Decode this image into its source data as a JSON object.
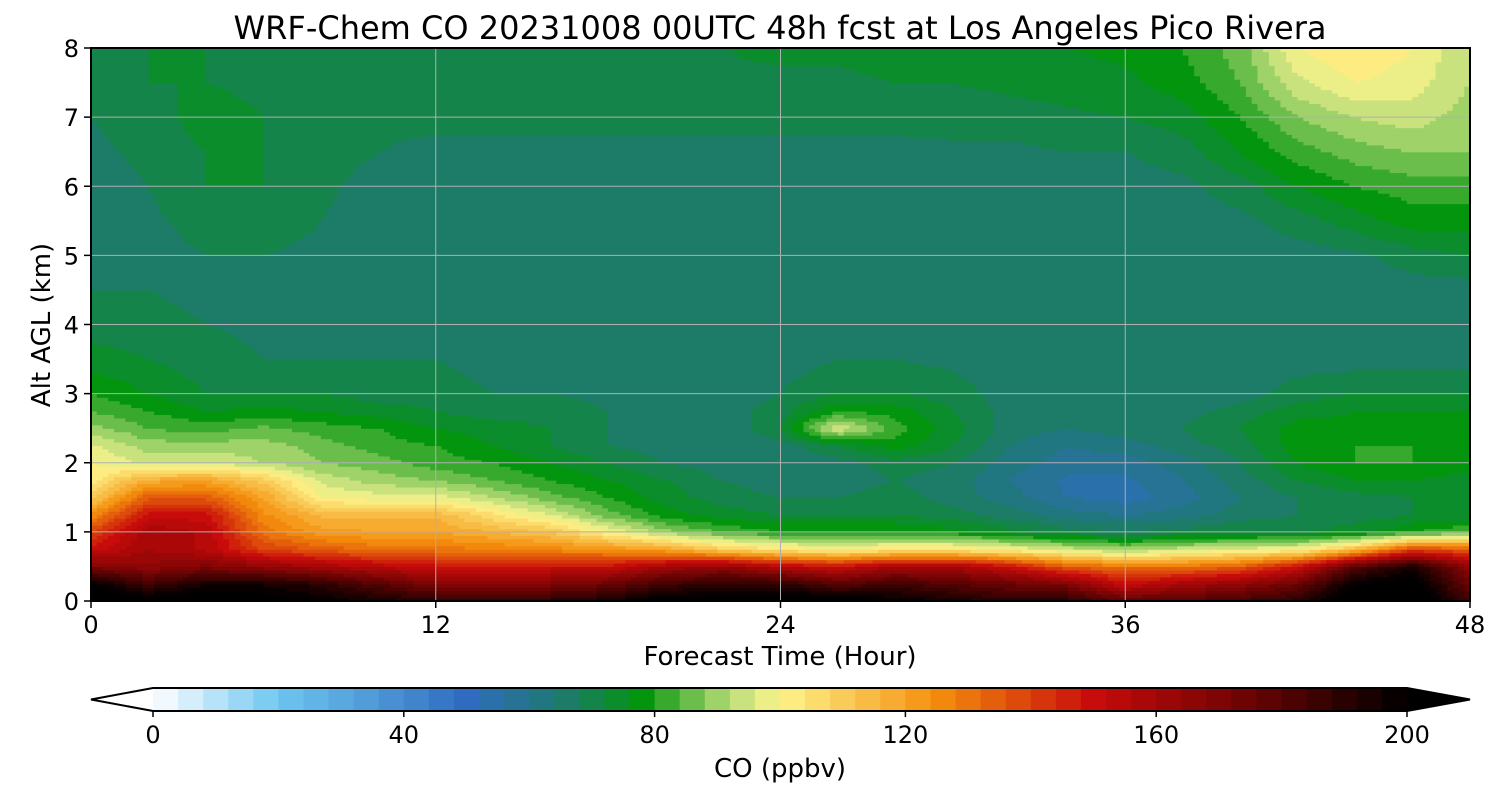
{
  "chart_data": {
    "type": "heatmap",
    "title": "WRF-Chem CO  20231008 00UTC 48h fcst at Los Angeles Pico Rivera",
    "xlabel": "Forecast Time (Hour)",
    "ylabel": "Alt AGL (km)",
    "xlim": [
      0,
      48
    ],
    "ylim": [
      0,
      8
    ],
    "x_ticks": [
      0,
      12,
      24,
      36,
      48
    ],
    "y_ticks": [
      0,
      1,
      2,
      3,
      4,
      5,
      6,
      7,
      8
    ],
    "grid": true,
    "colorbar": {
      "label": "CO  (ppbv)",
      "range": [
        0,
        200
      ],
      "ticks": [
        0,
        40,
        80,
        120,
        160,
        200
      ],
      "extend": "both",
      "orientation": "horizontal",
      "colors": [
        {
          "v": 0,
          "c": "#ffffff"
        },
        {
          "v": 20,
          "c": "#6ec6f0"
        },
        {
          "v": 50,
          "c": "#2f6cbf"
        },
        {
          "v": 65,
          "c": "#1e7a70"
        },
        {
          "v": 78,
          "c": "#03950e"
        },
        {
          "v": 92,
          "c": "#b9dc78"
        },
        {
          "v": 100,
          "c": "#fdf48c"
        },
        {
          "v": 125,
          "c": "#f48e0c"
        },
        {
          "v": 150,
          "c": "#c80b0b"
        },
        {
          "v": 175,
          "c": "#6a0303"
        },
        {
          "v": 200,
          "c": "#000000"
        }
      ]
    },
    "field": {
      "x": [
        0,
        2,
        4,
        6,
        8,
        10,
        12,
        14,
        16,
        18,
        20,
        22,
        24,
        26,
        28,
        30,
        32,
        34,
        36,
        38,
        40,
        42,
        44,
        46,
        48
      ],
      "z_km": [
        0,
        0.25,
        0.5,
        0.75,
        1.0,
        1.25,
        1.5,
        1.75,
        2.0,
        2.25,
        2.5,
        2.75,
        3.0,
        3.5,
        4.0,
        4.5,
        5.0,
        5.5,
        6.0,
        6.5,
        7.0,
        7.5,
        8.0
      ],
      "co_ppbv": [
        [
          210,
          205,
          210,
          205,
          200,
          195,
          190,
          190,
          190,
          195,
          205,
          205,
          210,
          205,
          200,
          195,
          190,
          190,
          180,
          180,
          185,
          190,
          210,
          210,
          185
        ],
        [
          200,
          185,
          195,
          195,
          190,
          180,
          170,
          168,
          170,
          175,
          185,
          190,
          190,
          180,
          185,
          180,
          175,
          170,
          150,
          160,
          165,
          175,
          200,
          205,
          175
        ],
        [
          170,
          165,
          170,
          165,
          160,
          155,
          150,
          150,
          150,
          150,
          160,
          165,
          155,
          150,
          160,
          160,
          150,
          135,
          130,
          130,
          135,
          150,
          180,
          195,
          165
        ],
        [
          150,
          160,
          155,
          140,
          135,
          130,
          130,
          128,
          126,
          124,
          120,
          110,
          104,
          100,
          104,
          104,
          100,
          95,
          90,
          95,
          98,
          100,
          115,
          140,
          135
        ],
        [
          140,
          160,
          155,
          130,
          122,
          120,
          120,
          116,
          112,
          100,
          90,
          84,
          80,
          80,
          80,
          78,
          74,
          70,
          68,
          70,
          72,
          72,
          74,
          80,
          85
        ],
        [
          125,
          150,
          150,
          125,
          115,
          115,
          115,
          105,
          96,
          86,
          78,
          74,
          72,
          72,
          72,
          70,
          66,
          62,
          60,
          62,
          66,
          68,
          70,
          72,
          72
        ],
        [
          110,
          135,
          135,
          120,
          100,
          98,
          98,
          92,
          86,
          80,
          74,
          70,
          68,
          68,
          70,
          66,
          62,
          56,
          54,
          58,
          64,
          68,
          70,
          72,
          72
        ],
        [
          102,
          118,
          120,
          110,
          95,
          90,
          88,
          84,
          80,
          76,
          72,
          68,
          66,
          66,
          68,
          66,
          60,
          55,
          55,
          60,
          66,
          72,
          76,
          76,
          74
        ],
        [
          100,
          95,
          96,
          92,
          88,
          86,
          82,
          80,
          76,
          72,
          68,
          66,
          66,
          66,
          70,
          68,
          62,
          58,
          58,
          62,
          68,
          76,
          80,
          80,
          78
        ],
        [
          97,
          90,
          90,
          90,
          86,
          82,
          80,
          76,
          72,
          68,
          66,
          64,
          66,
          72,
          78,
          72,
          64,
          60,
          62,
          66,
          70,
          78,
          80,
          80,
          78
        ],
        [
          90,
          84,
          82,
          85,
          82,
          80,
          76,
          74,
          72,
          68,
          66,
          64,
          72,
          96,
          82,
          74,
          66,
          64,
          66,
          68,
          72,
          78,
          78,
          78,
          78
        ],
        [
          84,
          80,
          76,
          77,
          76,
          74,
          72,
          70,
          70,
          68,
          66,
          66,
          70,
          80,
          78,
          72,
          66,
          64,
          64,
          66,
          70,
          74,
          76,
          76,
          76
        ],
        [
          80,
          76,
          72,
          72,
          72,
          70,
          70,
          68,
          68,
          67,
          66,
          66,
          68,
          72,
          72,
          70,
          66,
          64,
          64,
          64,
          66,
          70,
          72,
          72,
          72
        ],
        [
          74,
          72,
          70,
          68,
          68,
          68,
          68,
          66,
          66,
          66,
          66,
          66,
          66,
          68,
          68,
          67,
          66,
          65,
          64,
          64,
          64,
          66,
          66,
          66,
          66
        ],
        [
          70,
          69,
          68,
          67,
          66,
          66,
          66,
          66,
          65,
          65,
          65,
          65,
          65,
          65,
          66,
          66,
          65,
          65,
          65,
          65,
          65,
          65,
          65,
          65,
          65
        ],
        [
          68,
          68,
          67,
          67,
          67,
          66,
          66,
          65,
          65,
          65,
          65,
          65,
          65,
          65,
          65,
          65,
          65,
          65,
          65,
          65,
          65,
          65,
          65,
          66,
          66
        ],
        [
          64,
          66,
          68,
          68,
          67,
          66,
          66,
          65,
          65,
          65,
          65,
          65,
          65,
          65,
          65,
          65,
          65,
          65,
          65,
          65,
          66,
          66,
          67,
          70,
          72
        ],
        [
          65,
          67,
          70,
          70,
          68,
          66,
          66,
          65,
          65,
          65,
          65,
          65,
          65,
          65,
          65,
          65,
          65,
          65,
          65,
          66,
          67,
          70,
          74,
          78,
          78
        ],
        [
          66,
          68,
          72,
          72,
          69,
          66,
          66,
          66,
          66,
          66,
          66,
          65,
          66,
          66,
          66,
          66,
          66,
          66,
          66,
          67,
          70,
          76,
          80,
          82,
          82
        ],
        [
          67,
          69,
          72,
          72,
          70,
          68,
          67,
          67,
          67,
          67,
          67,
          67,
          67,
          67,
          67,
          67,
          67,
          68,
          68,
          70,
          76,
          82,
          86,
          88,
          88
        ],
        [
          68,
          70,
          74,
          72,
          70,
          69,
          69,
          69,
          69,
          69,
          69,
          69,
          69,
          69,
          69,
          70,
          70,
          71,
          72,
          74,
          80,
          88,
          92,
          94,
          90
        ],
        [
          70,
          72,
          72,
          71,
          71,
          71,
          71,
          71,
          71,
          71,
          71,
          71,
          71,
          71,
          72,
          72,
          73,
          74,
          75,
          78,
          84,
          95,
          100,
          98,
          92
        ],
        [
          71,
          72,
          72,
          72,
          72,
          72,
          72,
          72,
          72,
          72,
          72,
          72,
          73,
          73,
          74,
          74,
          75,
          76,
          77,
          80,
          86,
          100,
          104,
          100,
          92
        ]
      ]
    }
  }
}
